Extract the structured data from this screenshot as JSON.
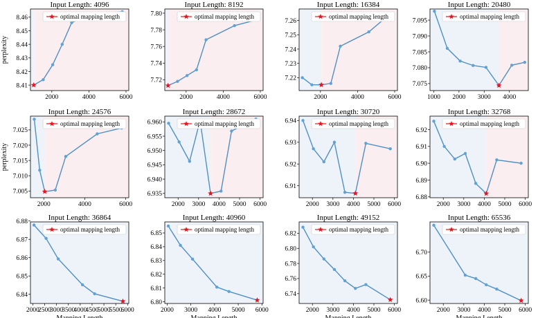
{
  "figure": {
    "colors": {
      "line": "#4f8fc4",
      "marker": "#5ea2d6",
      "star": "#e8131c",
      "left_region": "#eef3fa",
      "right_region": "#fbeef0"
    },
    "legend_label": "optimal mapping length",
    "ylabel": "perplexity",
    "xlabel": "Mapping Length"
  },
  "chart_data": [
    {
      "type": "line",
      "title": "Input Length: 4096",
      "x": [
        1024,
        1536,
        2048,
        2560,
        3072,
        4096,
        5800
      ],
      "y": [
        8.41,
        8.414,
        8.425,
        8.44,
        8.456,
        8.462,
        8.464
      ],
      "opt": {
        "x": 1024,
        "y": 8.41
      },
      "split": 1024,
      "xlim": [
        850,
        6150
      ],
      "ylim": [
        8.406,
        8.466
      ],
      "xticks": [
        2000,
        4000,
        6000
      ],
      "xtick_labels": [
        "2000",
        "4000",
        "6000"
      ],
      "yticks": [
        8.41,
        8.42,
        8.43,
        8.44,
        8.45,
        8.46
      ],
      "ytick_labels": [
        "8.41",
        "8.42",
        "8.43",
        "8.44",
        "8.45",
        "8.46"
      ]
    },
    {
      "type": "line",
      "title": "Input Length: 8192",
      "x": [
        1024,
        1536,
        2048,
        2560,
        3072,
        4608,
        5800
      ],
      "y": [
        7.713,
        7.718,
        7.725,
        7.732,
        7.768,
        7.785,
        7.792
      ],
      "opt": {
        "x": 1024,
        "y": 7.713
      },
      "split": 1024,
      "xlim": [
        850,
        6150
      ],
      "ylim": [
        7.707,
        7.805
      ],
      "xticks": [
        2000,
        4000,
        6000
      ],
      "xtick_labels": [
        "2000",
        "4000",
        "6000"
      ],
      "yticks": [
        7.72,
        7.74,
        7.76,
        7.78,
        7.8
      ],
      "ytick_labels": [
        "7.72",
        "7.74",
        "7.76",
        "7.78",
        "7.80"
      ]
    },
    {
      "type": "line",
      "title": "Input Length: 16384",
      "x": [
        1024,
        1536,
        2048,
        2560,
        3072,
        4608,
        5800
      ],
      "y": [
        7.22,
        7.215,
        7.215,
        7.216,
        7.242,
        7.252,
        7.265
      ],
      "opt": {
        "x": 2048,
        "y": 7.215
      },
      "split": 2048,
      "xlim": [
        850,
        6150
      ],
      "ylim": [
        7.211,
        7.268
      ],
      "xticks": [
        2000,
        4000,
        6000
      ],
      "xtick_labels": [
        "2000",
        "4000",
        "6000"
      ],
      "yticks": [
        7.22,
        7.23,
        7.24,
        7.25,
        7.26
      ],
      "ytick_labels": [
        "7.22",
        "7.23",
        "7.24",
        "7.25",
        "7.26"
      ]
    },
    {
      "type": "line",
      "title": "Input Length: 20480",
      "x": [
        1024,
        1536,
        2048,
        2560,
        3072,
        3584,
        4096,
        4608
      ],
      "y": [
        7.0978,
        7.0861,
        7.0821,
        7.0807,
        7.0801,
        7.0744,
        7.0808,
        7.0817
      ],
      "opt": {
        "x": 3584,
        "y": 7.0744
      },
      "split": 3584,
      "xlim": [
        850,
        4750
      ],
      "ylim": [
        7.0728,
        7.0985
      ],
      "xticks": [
        1000,
        2000,
        3000,
        4000
      ],
      "xtick_labels": [
        "1000",
        "2000",
        "3000",
        "4000"
      ],
      "yticks": [
        7.075,
        7.08,
        7.085,
        7.09,
        7.095
      ],
      "ytick_labels": [
        "7.075",
        "7.080",
        "7.085",
        "7.090",
        "7.095"
      ]
    },
    {
      "type": "line",
      "title": "Input Length: 24576",
      "x": [
        1536,
        1800,
        2048,
        2560,
        3072,
        4608,
        5800
      ],
      "y": [
        7.0285,
        7.0118,
        7.0048,
        7.0053,
        7.0163,
        7.0237,
        7.0256
      ],
      "opt": {
        "x": 2048,
        "y": 7.0048
      },
      "split": 2048,
      "xlim": [
        1350,
        6150
      ],
      "ylim": [
        7.0028,
        7.0295
      ],
      "xticks": [
        2000,
        4000,
        6000
      ],
      "xtick_labels": [
        "2000",
        "4000",
        "6000"
      ],
      "yticks": [
        7.005,
        7.01,
        7.015,
        7.02,
        7.025
      ],
      "ytick_labels": [
        "7.005",
        "7.010",
        "7.015",
        "7.020",
        "7.025"
      ]
    },
    {
      "type": "line",
      "title": "Input Length: 28672",
      "x": [
        1536,
        2048,
        2560,
        3072,
        3584,
        4096,
        4608,
        5800
      ],
      "y": [
        6.9595,
        6.953,
        6.9462,
        6.9605,
        6.935,
        6.9358,
        6.9568,
        6.961
      ],
      "opt": {
        "x": 3584,
        "y": 6.935
      },
      "split": 3584,
      "xlim": [
        1350,
        6150
      ],
      "ylim": [
        6.9335,
        6.962
      ],
      "xticks": [
        2000,
        3000,
        4000,
        5000,
        6000
      ],
      "xtick_labels": [
        "2000",
        "3000",
        "4000",
        "5000",
        "6000"
      ],
      "yticks": [
        6.935,
        6.94,
        6.945,
        6.95,
        6.955,
        6.96
      ],
      "ytick_labels": [
        "6.935",
        "6.940",
        "6.945",
        "6.950",
        "6.955",
        "6.960"
      ]
    },
    {
      "type": "line",
      "title": "Input Length: 30720",
      "x": [
        1536,
        2048,
        2560,
        3072,
        3584,
        4096,
        4608,
        5800
      ],
      "y": [
        6.94,
        6.927,
        6.921,
        6.93,
        6.907,
        6.9065,
        6.9295,
        6.927
      ],
      "opt": {
        "x": 4096,
        "y": 6.9065
      },
      "split": 4096,
      "xlim": [
        1350,
        6150
      ],
      "ylim": [
        6.9045,
        6.942
      ],
      "xticks": [
        2000,
        3000,
        4000,
        5000,
        6000
      ],
      "xtick_labels": [
        "2000",
        "3000",
        "4000",
        "5000",
        "6000"
      ],
      "yticks": [
        6.91,
        6.92,
        6.93,
        6.94
      ],
      "ytick_labels": [
        "6.91",
        "6.92",
        "6.93",
        "6.94"
      ]
    },
    {
      "type": "line",
      "title": "Input Length: 32768",
      "x": [
        1536,
        2048,
        2560,
        3072,
        3584,
        4096,
        4608,
        5800
      ],
      "y": [
        6.925,
        6.91,
        6.9025,
        6.9058,
        6.888,
        6.882,
        6.902,
        6.9
      ],
      "opt": {
        "x": 4096,
        "y": 6.882
      },
      "split": 4096,
      "xlim": [
        1350,
        6150
      ],
      "ylim": [
        6.8795,
        6.928
      ],
      "xticks": [
        2000,
        3000,
        4000,
        5000,
        6000
      ],
      "xtick_labels": [
        "2000",
        "3000",
        "4000",
        "5000",
        "6000"
      ],
      "yticks": [
        6.88,
        6.89,
        6.9,
        6.91,
        6.92
      ],
      "ytick_labels": [
        "6.88",
        "6.89",
        "6.90",
        "6.91",
        "6.92"
      ]
    },
    {
      "type": "line",
      "title": "Input Length: 36864",
      "x": [
        2048,
        2560,
        3072,
        4096,
        4608,
        5800
      ],
      "y": [
        6.8778,
        6.8705,
        6.8593,
        6.8452,
        6.8403,
        6.8362
      ],
      "opt": {
        "x": 5800,
        "y": 6.8362
      },
      "split": null,
      "xlim": [
        1900,
        6050
      ],
      "ylim": [
        6.835,
        6.8795
      ],
      "xticks": [
        2000,
        2500,
        3000,
        3500,
        4000,
        4500,
        5000,
        5500,
        6000
      ],
      "xtick_labels": [
        "2000",
        "2500",
        "3000",
        "3500",
        "4000",
        "4500",
        "5000",
        "5500",
        "6000"
      ],
      "yticks": [
        6.84,
        6.85,
        6.86,
        6.87,
        6.88
      ],
      "ytick_labels": [
        "6.84",
        "6.85",
        "6.86",
        "6.87",
        "6.88"
      ]
    },
    {
      "type": "line",
      "title": "Input Length: 40960",
      "x": [
        2048,
        2560,
        3072,
        4096,
        4608,
        5800
      ],
      "y": [
        6.855,
        6.841,
        6.831,
        6.8107,
        6.8075,
        6.8012
      ],
      "opt": {
        "x": 5800,
        "y": 6.8012
      },
      "split": null,
      "xlim": [
        1900,
        6050
      ],
      "ylim": [
        6.7988,
        6.858
      ],
      "xticks": [
        2000,
        3000,
        4000,
        5000,
        6000
      ],
      "xtick_labels": [
        "2000",
        "3000",
        "4000",
        "5000",
        "6000"
      ],
      "yticks": [
        6.8,
        6.81,
        6.82,
        6.83,
        6.84,
        6.85
      ],
      "ytick_labels": [
        "6.80",
        "6.81",
        "6.82",
        "6.83",
        "6.84",
        "6.85"
      ]
    },
    {
      "type": "line",
      "title": "Input Length: 49152",
      "x": [
        1536,
        2048,
        2560,
        3072,
        3584,
        4096,
        4608,
        5800
      ],
      "y": [
        6.828,
        6.802,
        6.786,
        6.772,
        6.757,
        6.747,
        6.752,
        6.732
      ],
      "opt": {
        "x": 5800,
        "y": 6.732
      },
      "split": null,
      "xlim": [
        1350,
        6150
      ],
      "ylim": [
        6.727,
        6.835
      ],
      "xticks": [
        2000,
        3000,
        4000,
        5000,
        6000
      ],
      "xtick_labels": [
        "2000",
        "3000",
        "4000",
        "5000",
        "6000"
      ],
      "yticks": [
        6.74,
        6.76,
        6.78,
        6.8,
        6.82
      ],
      "ytick_labels": [
        "6.74",
        "6.76",
        "6.78",
        "6.80",
        "6.82"
      ]
    },
    {
      "type": "line",
      "title": "Input Length: 65536",
      "x": [
        1536,
        3072,
        3584,
        4096,
        4608,
        5800
      ],
      "y": [
        6.756,
        6.652,
        6.645,
        6.632,
        6.623,
        6.599
      ],
      "opt": {
        "x": 5800,
        "y": 6.599
      },
      "split": null,
      "xlim": [
        1350,
        6150
      ],
      "ylim": [
        6.593,
        6.763
      ],
      "xticks": [
        2000,
        3000,
        4000,
        5000,
        6000
      ],
      "xtick_labels": [
        "2000",
        "3000",
        "4000",
        "5000",
        "6000"
      ],
      "yticks": [
        6.6,
        6.65,
        6.7
      ],
      "ytick_labels": [
        "6.60",
        "6.65",
        "6.70"
      ]
    }
  ]
}
